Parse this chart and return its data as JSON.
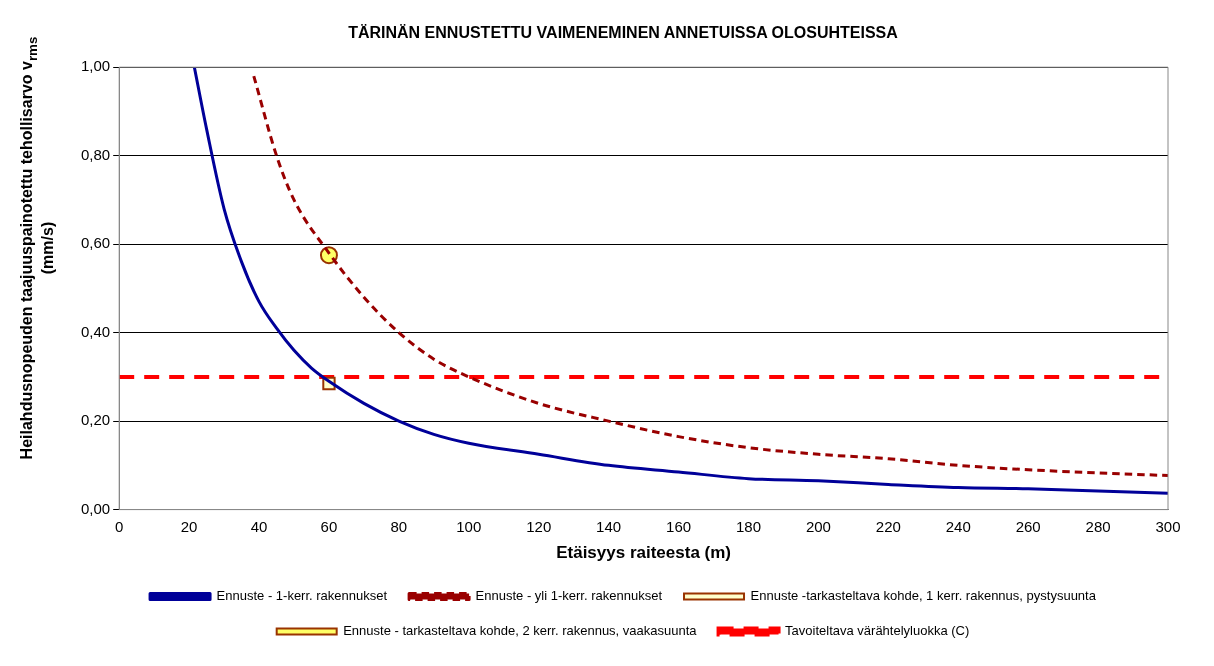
{
  "chart_data": {
    "type": "line",
    "title": "TÄRINÄN ENNUSTETTU VAIMENEMINEN ANNETUISSA OLOSUHTEISSA",
    "xlabel": "Etäisyys raiteesta (m)",
    "ylabel": "Heilahdusnopeuden taajuuspainotettu tehollisarvo v$_{rms}$ (mm/s)",
    "xlim": [
      0,
      300
    ],
    "xticks": [
      0,
      20,
      40,
      60,
      80,
      100,
      120,
      140,
      160,
      180,
      200,
      220,
      240,
      260,
      280,
      300
    ],
    "ylim": [
      0,
      1
    ],
    "yticks": [
      {
        "value": 0,
        "label": "0,00"
      },
      {
        "value": 0.2,
        "label": "0,20"
      },
      {
        "value": 0.4,
        "label": "0,40"
      },
      {
        "value": 0.6,
        "label": "0,60"
      },
      {
        "value": 0.8,
        "label": "0,80"
      },
      {
        "value": 1,
        "label": "1,00"
      }
    ],
    "grid": "y",
    "legend": "bottom",
    "series": [
      {
        "name": "Ennuste - 1-kerr. rakennukset",
        "color": "#000099",
        "line_style": "solid",
        "marker": "none",
        "x": [
          21.5,
          25,
          30,
          35,
          40,
          45,
          50,
          55,
          60,
          70,
          80,
          90,
          100,
          120,
          140,
          160,
          180,
          200,
          220,
          240,
          260,
          280,
          300
        ],
        "values": [
          1.0,
          0.86,
          0.68,
          0.56,
          0.47,
          0.41,
          0.36,
          0.32,
          0.29,
          0.24,
          0.2,
          0.17,
          0.15,
          0.125,
          0.1,
          0.085,
          0.07,
          0.065,
          0.057,
          0.05,
          0.047,
          0.042,
          0.037
        ]
      },
      {
        "name": "Ennuste - yli 1-kerr. rakennukset",
        "color": "#990000",
        "line_style": "dashed",
        "marker": "none",
        "x": [
          38.5,
          45,
          50,
          60,
          70,
          80,
          90,
          100,
          120,
          140,
          160,
          180,
          200,
          220,
          240,
          260,
          280,
          300
        ],
        "values": [
          0.98,
          0.8,
          0.7,
          0.58,
          0.48,
          0.4,
          0.34,
          0.3,
          0.24,
          0.2,
          0.165,
          0.14,
          0.125,
          0.115,
          0.1,
          0.09,
          0.083,
          0.077
        ]
      },
      {
        "name": "Ennuste -tarkasteltava kohde, 1 kerr. rakennus, pystysuunta",
        "type": "scatter",
        "color": "#ffffcc",
        "marker": "square",
        "x": [
          60
        ],
        "values": [
          0.285
        ]
      },
      {
        "name": "Ennuste - tarkasteltava kohde, 2 kerr. rakennus, vaakasuunta",
        "type": "scatter",
        "color": "#ffff66",
        "marker": "circle",
        "x": [
          60
        ],
        "values": [
          0.575
        ]
      }
    ],
    "ref_lines": [
      {
        "axis": "y",
        "value": 0.3,
        "label": "Tavoiteltava värähtelyluokka (C)",
        "color": "#ff0000",
        "line_style": "dashed"
      }
    ]
  }
}
